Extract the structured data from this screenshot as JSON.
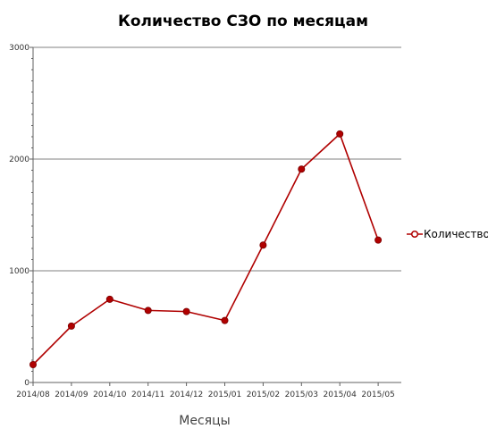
{
  "chart_data": {
    "type": "line",
    "title": "Количество СЗО по месяцам",
    "xlabel": "Месяцы",
    "ylabel": "",
    "categories": [
      "2014/08",
      "2014/09",
      "2014/10",
      "2014/11",
      "2014/12",
      "2015/01",
      "2015/02",
      "2015/03",
      "2015/04",
      "2015/05"
    ],
    "series": [
      {
        "name": "Количество",
        "values": [
          160,
          505,
          745,
          645,
          635,
          555,
          1230,
          1910,
          2225,
          1275
        ]
      }
    ],
    "ylim": [
      0,
      3000
    ],
    "yticks": [
      0,
      1000,
      2000,
      3000
    ],
    "grid": true,
    "legend": "right",
    "colors": {
      "series": "#b00000",
      "grid": "#808080",
      "axis": "#606060"
    }
  }
}
